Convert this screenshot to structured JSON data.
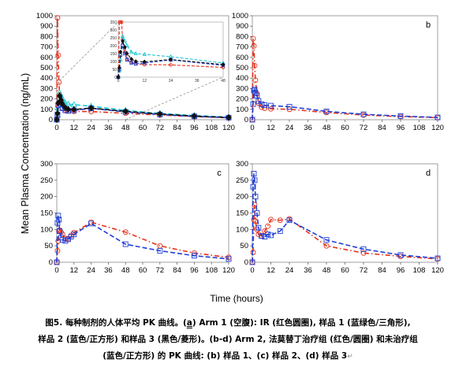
{
  "figure": {
    "ylabel": "Mean Plasma Concentration (ng/mL)",
    "xlabel": "Time (hours)",
    "xticks": [
      0,
      12,
      24,
      36,
      48,
      60,
      72,
      84,
      96,
      108,
      120
    ]
  },
  "caption": {
    "line1_a": "图5. 每种制剂的人体平均 PK 曲线。(",
    "line1_a_marker": "a",
    "line1_b": ") Arm 1 (空腹): IR (红色圆圈), 样品 1 (蓝绿色/三角形),",
    "line2": "样品 2 (蓝色/正方形) 和样品 3 (黑色/菱形)。(b-d) Arm 2, 法莫替丁治疗组 (红色/圆圈) 和未治疗组",
    "line3": "(蓝色/正方形) 的 PK 曲线: (b) 样品 1、(c) 样品 2、(d) 样品 3",
    "return_mark": "↵"
  },
  "colors": {
    "red": "#e8311b",
    "blue": "#1f3fd6",
    "teal": "#1ec8d2",
    "black": "#111111",
    "gray": "#555555"
  },
  "chart_data": [
    {
      "panel": "a",
      "type": "line",
      "xlim": [
        0,
        120
      ],
      "ylim": [
        0,
        1000
      ],
      "yticks": [
        0,
        100,
        200,
        300,
        400,
        500,
        600,
        700,
        800,
        900,
        1000
      ],
      "series": [
        {
          "color_key": "red",
          "marker": "circle",
          "x": [
            0,
            0.5,
            1,
            1.5,
            2,
            3,
            4,
            6,
            8,
            12,
            24,
            48,
            72,
            96,
            120
          ],
          "y": [
            0,
            980,
            620,
            360,
            240,
            160,
            115,
            95,
            85,
            80,
            78,
            62,
            45,
            30,
            18
          ]
        },
        {
          "color_key": "teal",
          "marker": "triangle",
          "x": [
            0,
            0.5,
            1,
            2,
            3,
            4,
            6,
            8,
            12,
            24,
            48,
            72,
            96,
            120
          ],
          "y": [
            0,
            40,
            110,
            260,
            230,
            200,
            160,
            150,
            145,
            130,
            90,
            60,
            40,
            25
          ]
        },
        {
          "color_key": "blue",
          "marker": "square",
          "x": [
            0,
            0.5,
            1,
            2,
            3,
            4,
            6,
            8,
            12,
            24,
            48,
            72,
            96,
            120
          ],
          "y": [
            0,
            50,
            140,
            200,
            150,
            110,
            90,
            85,
            90,
            110,
            75,
            50,
            32,
            20
          ]
        },
        {
          "color_key": "black",
          "marker": "diamond",
          "x": [
            0,
            0.5,
            1,
            2,
            3,
            4,
            6,
            8,
            12,
            24,
            48,
            72,
            96,
            120
          ],
          "y": [
            0,
            60,
            160,
            230,
            190,
            150,
            115,
            100,
            98,
            112,
            80,
            55,
            35,
            22
          ]
        }
      ],
      "inset": {
        "xlim": [
          0,
          48
        ],
        "ylim": [
          0,
          350
        ],
        "xticks": [
          0,
          12,
          24,
          36,
          48
        ],
        "yticks": [
          0,
          50,
          100,
          150,
          200,
          250,
          300,
          350
        ],
        "xlabels": [
          "0",
          "12",
          "24",
          "36",
          "48"
        ],
        "ylabels": [
          "0",
          "50",
          "100",
          "150",
          "200",
          "250",
          "300",
          "350"
        ]
      }
    },
    {
      "panel": "b",
      "type": "line",
      "xlim": [
        0,
        120
      ],
      "ylim": [
        0,
        1000
      ],
      "yticks": [
        0,
        100,
        200,
        300,
        400,
        500,
        600,
        700,
        800,
        900,
        1000
      ],
      "series": [
        {
          "color_key": "red",
          "marker": "circle",
          "x": [
            0,
            0.5,
            1,
            1.5,
            2,
            3,
            4,
            6,
            8,
            12,
            24,
            48,
            72,
            96,
            120
          ],
          "y": [
            0,
            780,
            710,
            520,
            380,
            250,
            160,
            120,
            110,
            105,
            100,
            70,
            45,
            30,
            20
          ]
        },
        {
          "color_key": "blue",
          "marker": "square",
          "x": [
            0,
            0.5,
            1,
            1.5,
            2,
            3,
            4,
            6,
            8,
            12,
            24,
            48,
            72,
            96,
            120
          ],
          "y": [
            0,
            150,
            280,
            290,
            260,
            230,
            180,
            150,
            140,
            135,
            125,
            80,
            52,
            35,
            22
          ]
        }
      ]
    },
    {
      "panel": "c",
      "type": "line",
      "xlim": [
        0,
        120
      ],
      "ylim": [
        0,
        300
      ],
      "yticks": [
        0,
        50,
        100,
        150,
        200,
        250,
        300
      ],
      "series": [
        {
          "color_key": "red",
          "marker": "circle",
          "x": [
            0,
            0.5,
            1,
            1.5,
            2,
            3,
            4,
            6,
            8,
            10,
            12,
            24,
            48,
            72,
            96,
            120
          ],
          "y": [
            0,
            35,
            65,
            95,
            98,
            92,
            85,
            72,
            72,
            82,
            90,
            122,
            92,
            50,
            28,
            15
          ]
        },
        {
          "color_key": "blue",
          "marker": "square",
          "x": [
            0,
            0.5,
            1,
            1.5,
            2,
            3,
            4,
            6,
            8,
            10,
            12,
            24,
            48,
            72,
            96,
            120
          ],
          "y": [
            0,
            120,
            142,
            130,
            95,
            75,
            68,
            65,
            70,
            78,
            85,
            118,
            55,
            35,
            20,
            10
          ]
        }
      ]
    },
    {
      "panel": "d",
      "type": "line",
      "xlim": [
        0,
        120
      ],
      "ylim": [
        0,
        300
      ],
      "yticks": [
        0,
        50,
        100,
        150,
        200,
        250,
        300
      ],
      "series": [
        {
          "color_key": "red",
          "marker": "circle",
          "x": [
            0,
            0.5,
            1,
            1.5,
            2,
            3,
            4,
            6,
            8,
            10,
            12,
            18,
            24,
            48,
            72,
            96,
            120
          ],
          "y": [
            0,
            30,
            130,
            175,
            125,
            100,
            85,
            80,
            95,
            110,
            130,
            128,
            132,
            50,
            28,
            18,
            10
          ]
        },
        {
          "color_key": "blue",
          "marker": "square",
          "x": [
            0,
            0.5,
            1,
            1.5,
            2,
            3,
            4,
            6,
            8,
            10,
            12,
            18,
            24,
            48,
            72,
            96,
            120
          ],
          "y": [
            0,
            230,
            270,
            250,
            200,
            150,
            105,
            80,
            78,
            85,
            82,
            95,
            128,
            68,
            40,
            22,
            12
          ]
        }
      ]
    }
  ]
}
